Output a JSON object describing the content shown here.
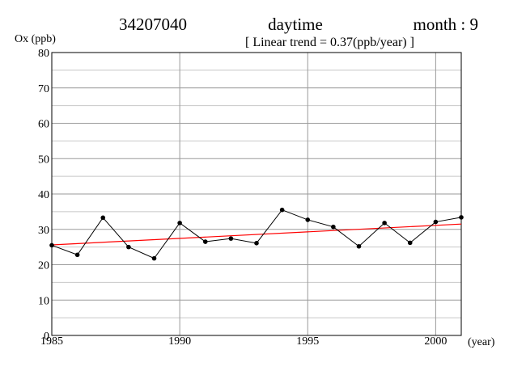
{
  "header": {
    "station": "34207040",
    "period": "daytime",
    "month_label": "month : 9",
    "trend_text": "[ Linear trend = 0.37(ppb/year) ]"
  },
  "chart_data": {
    "type": "line",
    "ylabel": "Ox (ppb)",
    "xlabel": "(year)",
    "xlim": [
      1985,
      2001
    ],
    "ylim": [
      0,
      80
    ],
    "x_ticks": [
      1985,
      1990,
      1995,
      2000
    ],
    "y_ticks": [
      0,
      10,
      20,
      30,
      40,
      50,
      60,
      70,
      80
    ],
    "grid": true,
    "series": [
      {
        "x": [
          1985,
          1986,
          1987,
          1988,
          1989,
          1990,
          1991,
          1992,
          1993,
          1994,
          1995,
          1996,
          1997,
          1998,
          1999,
          2000,
          2001
        ],
        "values": [
          25.5,
          22.8,
          33.3,
          25.0,
          21.8,
          31.8,
          26.5,
          27.4,
          26.1,
          35.5,
          32.7,
          30.7,
          25.2,
          31.8,
          26.2,
          32.1,
          33.4
        ],
        "color": "#000000"
      }
    ],
    "trend": {
      "slope": 0.37,
      "x": [
        1985,
        2001
      ],
      "values": [
        25.6,
        31.5
      ],
      "color": "#ff0000"
    }
  }
}
